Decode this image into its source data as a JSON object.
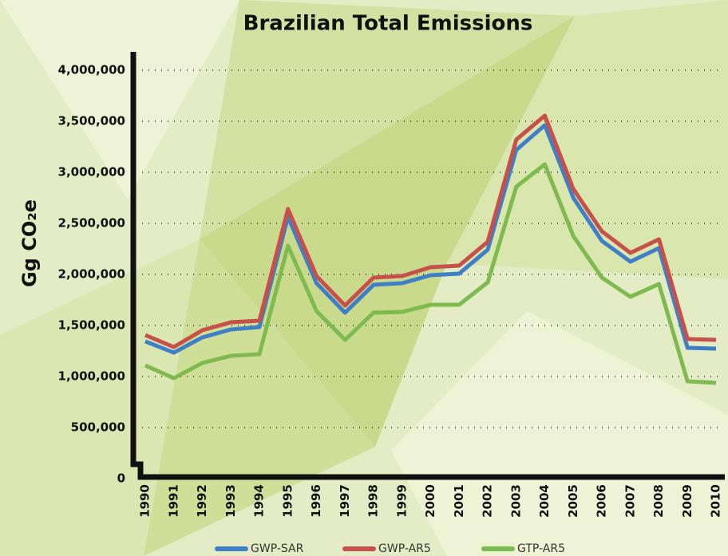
{
  "chart_data": {
    "type": "line",
    "title": "Brazilian Total Emissions",
    "y_label": "Gg CO₂e",
    "categories": [
      "1990",
      "1991",
      "1992",
      "1993",
      "1994",
      "1995",
      "1996",
      "1997",
      "1998",
      "1999",
      "2000",
      "2001",
      "2002",
      "2003",
      "2004",
      "2005",
      "2006",
      "2007",
      "2008",
      "2009",
      "2010"
    ],
    "series": [
      {
        "name": "GWP-SAR",
        "color": "#3f7fc8",
        "values": [
          1344000,
          1234000,
          1383000,
          1461000,
          1484000,
          2563000,
          1914000,
          1625000,
          1898000,
          1914000,
          1992000,
          2008000,
          2242000,
          3219000,
          3461000,
          2750000,
          2328000,
          2125000,
          2258000,
          1281000,
          1273000
        ]
      },
      {
        "name": "GWP-AR5",
        "color": "#c8504a",
        "values": [
          1406000,
          1289000,
          1453000,
          1531000,
          1547000,
          2641000,
          1984000,
          1695000,
          1969000,
          1984000,
          2070000,
          2086000,
          2320000,
          3320000,
          3555000,
          2836000,
          2422000,
          2211000,
          2344000,
          1367000,
          1359000
        ]
      },
      {
        "name": "GTP-AR5",
        "color": "#7fba4e",
        "values": [
          1109000,
          984000,
          1133000,
          1203000,
          1219000,
          2281000,
          1641000,
          1359000,
          1625000,
          1633000,
          1703000,
          1703000,
          1922000,
          2859000,
          3078000,
          2375000,
          1969000,
          1781000,
          1906000,
          953000,
          938000
        ]
      }
    ],
    "ylim": [
      0,
      4000000
    ],
    "yticks": [
      0,
      {
        "value": 500000,
        "label": "500,000"
      },
      {
        "value": 1000000,
        "label": "1,000,000"
      },
      {
        "value": 1500000,
        "label": "1,500,000"
      },
      {
        "value": 2000000,
        "label": "2,000,000"
      },
      {
        "value": 2500000,
        "label": "2,500,000"
      },
      {
        "value": 3000000,
        "label": "3,000,000"
      },
      {
        "value": 3500000,
        "label": "3,500,000"
      },
      {
        "value": 4000000,
        "label": "4,000,000"
      }
    ],
    "grid": true,
    "legend": "bottom"
  }
}
